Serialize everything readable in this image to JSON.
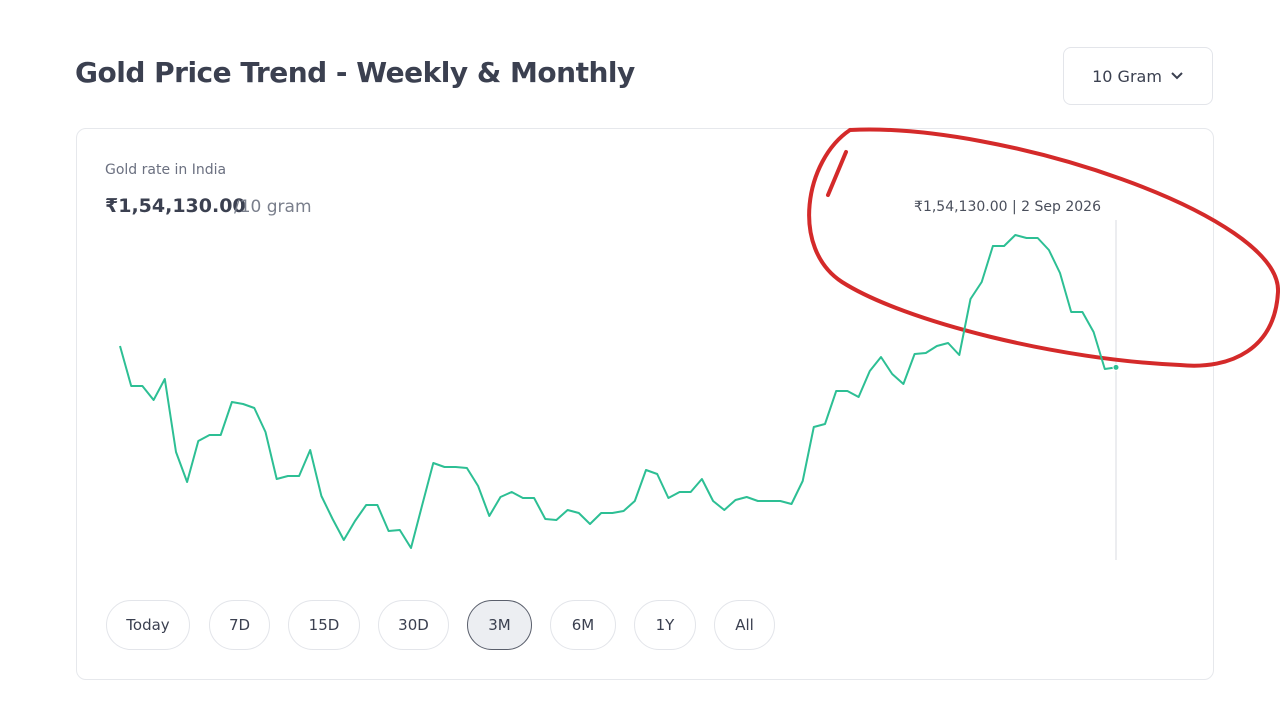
{
  "header": {
    "title": "Gold Price Trend - Weekly & Monthly",
    "unit_select": "10 Gram"
  },
  "chart_data": {
    "type": "line",
    "label": "Gold rate in India",
    "price": "₹1,54,130.00",
    "price_unit": "/10 gram",
    "tooltip": "₹1,54,130.00 | 2 Sep 2026",
    "color": "#2dbf94",
    "ylim": [
      144500,
      161500
    ],
    "values": [
      155200,
      153200,
      153200,
      152500,
      153550,
      149900,
      148400,
      150450,
      150750,
      150750,
      152400,
      152300,
      152100,
      150900,
      148550,
      148700,
      148700,
      150000,
      147700,
      146550,
      145500,
      146450,
      147250,
      147250,
      145950,
      146000,
      145100,
      147250,
      149350,
      149150,
      149150,
      149100,
      148200,
      146700,
      147650,
      147900,
      147600,
      147600,
      146550,
      146500,
      147000,
      146850,
      146300,
      146850,
      146850,
      146950,
      147450,
      149000,
      148800,
      147600,
      147900,
      147900,
      148550,
      147450,
      147000,
      147500,
      147650,
      147450,
      147450,
      147450,
      147300,
      148450,
      151150,
      151300,
      152950,
      152950,
      152650,
      153950,
      154650,
      153800,
      153300,
      154800,
      154850,
      155200,
      155350,
      154750,
      157550,
      158400,
      160200,
      160200,
      160750,
      160600,
      160600,
      160000,
      158850,
      156900,
      156900,
      155900,
      154050,
      154130
    ]
  },
  "ranges": {
    "options": [
      "Today",
      "7D",
      "15D",
      "30D",
      "3M",
      "6M",
      "1Y",
      "All"
    ],
    "selected": 4
  }
}
